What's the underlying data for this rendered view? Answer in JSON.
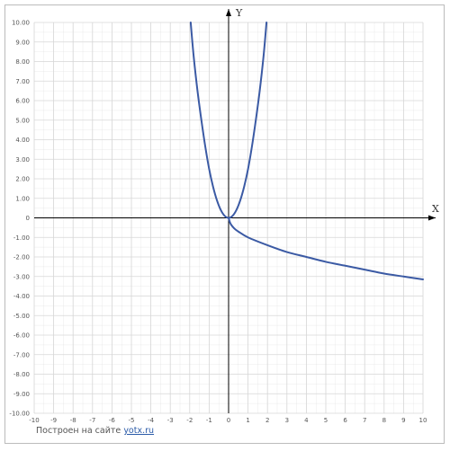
{
  "colors": {
    "curve": "#3b5aa4",
    "grid": "#d6d6d6",
    "axis": "#000000",
    "frame": "#bbbbbb"
  },
  "footer": {
    "text": "Построен на сайте",
    "link": "yotx.ru"
  },
  "chart_data": {
    "type": "line",
    "title": "",
    "xlabel": "X",
    "ylabel": "Y",
    "xlim": [
      -10,
      10
    ],
    "ylim": [
      -10,
      10
    ],
    "grid": true,
    "x_ticks": [
      "-10",
      "-9",
      "-8",
      "-7",
      "-6",
      "-5",
      "-4",
      "-3",
      "-2",
      "-1",
      "0",
      "1",
      "2",
      "3",
      "4",
      "5",
      "6",
      "7",
      "8",
      "9",
      "10"
    ],
    "y_ticks": [
      "10.00",
      "9.00",
      "8.00",
      "7.00",
      "6.00",
      "5.00",
      "4.00",
      "3.00",
      "2.00",
      "1.00",
      "0",
      "-1.00",
      "-2.00",
      "-3.00",
      "-4.00",
      "-5.00",
      "-6.00",
      "-7.00",
      "-8.00",
      "-9.00",
      "-10.00"
    ],
    "series": [
      {
        "x": [
          -1.95,
          -1.8,
          -1.6,
          -1.4,
          -1.2,
          -1.0,
          -0.8,
          -0.6,
          -0.4,
          -0.2,
          0,
          0.2,
          0.4,
          0.6,
          0.8,
          1.0,
          1.2,
          1.4,
          1.6,
          1.8,
          1.95
        ],
        "y": [
          10.0,
          8.3,
          6.5,
          5.0,
          3.65,
          2.5,
          1.6,
          0.9,
          0.4,
          0.1,
          0,
          0.1,
          0.4,
          0.9,
          1.6,
          2.5,
          3.65,
          5.0,
          6.5,
          8.3,
          10.0
        ]
      },
      {
        "x": [
          0,
          0.1,
          0.3,
          0.5,
          1,
          2,
          3,
          4,
          5,
          6,
          7,
          8,
          9,
          10
        ],
        "y": [
          0,
          -0.3,
          -0.55,
          -0.7,
          -1.0,
          -1.4,
          -1.75,
          -2.0,
          -2.25,
          -2.45,
          -2.65,
          -2.85,
          -3.0,
          -3.15
        ]
      }
    ]
  }
}
